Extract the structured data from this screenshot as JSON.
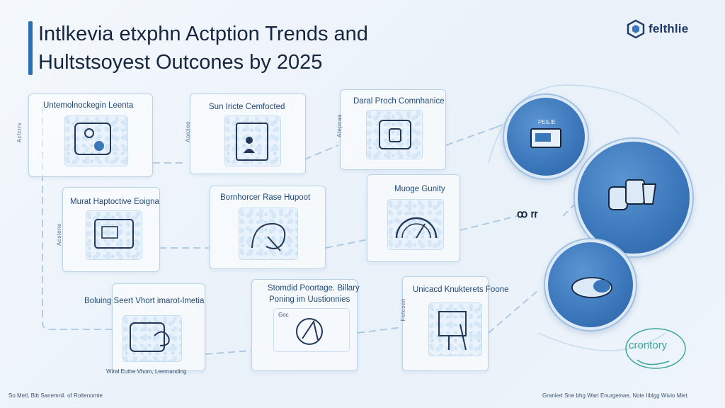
{
  "title": {
    "line1": "Intlkevia etxphn Actption Trends and",
    "line2": "Hultstsoyest Outcones by 2025"
  },
  "logo": {
    "text": "felthlie",
    "icon": "cube-icon"
  },
  "cards": [
    {
      "label": "Untemolnockegin Leenta",
      "side": "Acfcrrs",
      "icon": "tablet-icon"
    },
    {
      "label": "Sun Iricte Cemfocted",
      "side": "Aoiclee",
      "icon": "document-person-icon"
    },
    {
      "label": "Daral Proch Comnhanice",
      "side": "Alepoaa",
      "icon": "lock-device-icon"
    },
    {
      "label": "Murat Haptoctive Eoigna",
      "side": "Acslene",
      "icon": "screen-icon"
    },
    {
      "label": "Bornhorcer Rase Hupoot",
      "side": "",
      "icon": "chart-swirl-icon"
    },
    {
      "label": "Muoge Gunity",
      "side": "",
      "icon": "gauge-icon"
    },
    {
      "label": "Boluing Seert Vhort imarot-lmetia",
      "side": "",
      "icon": "chat-swirl-icon"
    },
    {
      "label": "Stomdid Poortage. Billary",
      "label2": "Poning im Uustionnies",
      "side": "",
      "icon": "person-lock-icon",
      "inner_tag": "Goc"
    },
    {
      "label": "Unicacd Knukterets Foone",
      "side": "Fetcoen",
      "icon": "signpost-icon"
    }
  ],
  "circles": [
    {
      "label": "PEILIE",
      "icon": "monitor-icon"
    },
    {
      "label": "",
      "icon": "devices-icon"
    },
    {
      "label": "",
      "icon": "cloud-icon"
    }
  ],
  "mid_mark": "ꝏ ꭇꭇ",
  "doodle_text": "crontory",
  "bottom_caption": "Wiral Euthe Vhom, Leernanding",
  "footer": {
    "left": "So Metl, Bitt Sanemnil. of Roltenomte",
    "right": "Graniert Sne bhg Wart Enurgetrwe, Note Iiblgg Wivio Miet."
  },
  "colors": {
    "accent": "#2a6fb5",
    "circle": "#3a76ba",
    "card_border": "#b8d2ea"
  }
}
